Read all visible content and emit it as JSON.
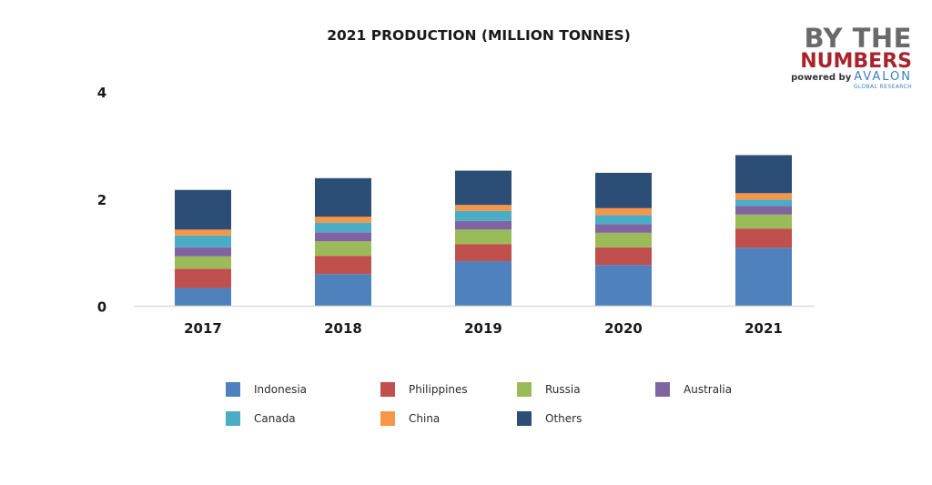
{
  "chart_data": {
    "type": "bar",
    "stacked": true,
    "title": "2021 PRODUCTION (MILLION TONNES)",
    "xlabel": "",
    "ylabel": "",
    "categories": [
      "2017",
      "2018",
      "2019",
      "2020",
      "2021"
    ],
    "ylim": [
      0,
      4
    ],
    "yticks": [
      0,
      2,
      4
    ],
    "ytick_labels": [
      "0",
      "2",
      "4"
    ],
    "grid": false,
    "legend_position": "bottom",
    "series": [
      {
        "name": "Indonesia",
        "color": "#4f81bd",
        "values": [
          0.34,
          0.6,
          0.84,
          0.77,
          1.09
        ]
      },
      {
        "name": "Philippines",
        "color": "#c0504d",
        "values": [
          0.36,
          0.34,
          0.32,
          0.33,
          0.36
        ]
      },
      {
        "name": "Russia",
        "color": "#9bbb59",
        "values": [
          0.23,
          0.27,
          0.27,
          0.27,
          0.26
        ]
      },
      {
        "name": "Australia",
        "color": "#8064a2",
        "values": [
          0.17,
          0.17,
          0.16,
          0.16,
          0.16
        ]
      },
      {
        "name": "Canada",
        "color": "#4bacc6",
        "values": [
          0.22,
          0.18,
          0.19,
          0.17,
          0.12
        ]
      },
      {
        "name": "China",
        "color": "#f79646",
        "values": [
          0.11,
          0.11,
          0.11,
          0.13,
          0.12
        ]
      },
      {
        "name": "Others",
        "color": "#2c4d75",
        "values": [
          0.74,
          0.72,
          0.64,
          0.66,
          0.71
        ]
      }
    ]
  },
  "logo": {
    "line1": "BY THE",
    "line2": "NUMBERS",
    "powered_by": "powered by",
    "brand": "AVALON",
    "sub": "GLOBAL RESEARCH"
  },
  "colors": {
    "axis": "#d9d9d9",
    "logo_gray": "#6a6a6a",
    "logo_red": "#a8242c",
    "logo_blue": "#3b7dbf"
  }
}
